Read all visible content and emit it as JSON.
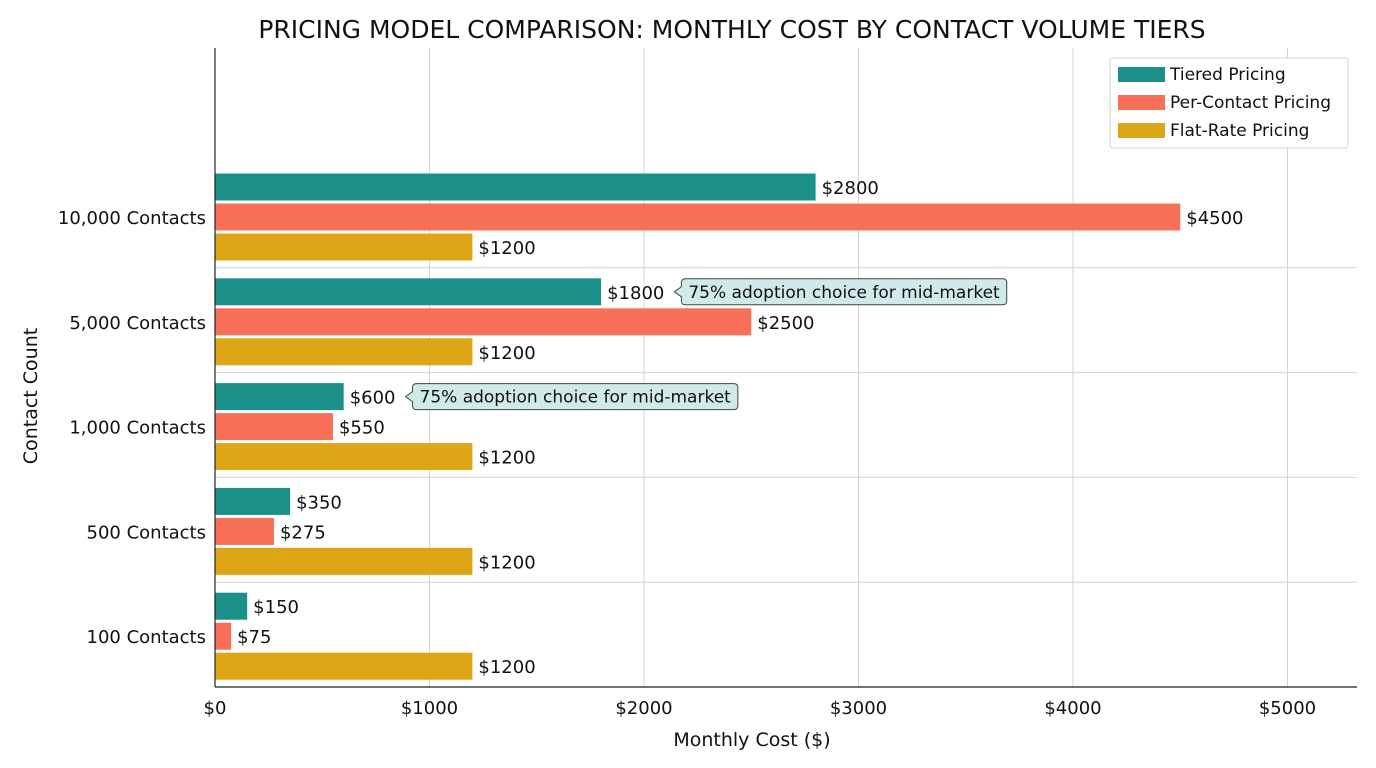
{
  "chart_data": {
    "type": "bar",
    "orientation": "horizontal",
    "title": "PRICING MODEL COMPARISON: MONTHLY COST BY CONTACT VOLUME TIERS",
    "xlabel": "Monthly Cost ($)",
    "ylabel": "Contact Count",
    "xlim": [
      0,
      5300
    ],
    "x_ticks": [
      0,
      1000,
      2000,
      3000,
      4000,
      5000
    ],
    "x_tick_labels": [
      "$0",
      "$1000",
      "$2000",
      "$3000",
      "$4000",
      "$5000"
    ],
    "categories": [
      "10,000 Contacts",
      "5,000 Contacts",
      "1,000 Contacts",
      "500 Contacts",
      "100 Contacts"
    ],
    "series": [
      {
        "name": "Tiered Pricing",
        "color": "#1a9089",
        "values": [
          2800,
          1800,
          600,
          350,
          150
        ],
        "labels": [
          "$2800",
          "$1800",
          "$600",
          "$350",
          "$150"
        ]
      },
      {
        "name": "Per-Contact Pricing",
        "color": "#f87058",
        "values": [
          4500,
          2500,
          550,
          275,
          75
        ],
        "labels": [
          "$4500",
          "$2500",
          "$550",
          "$275",
          "$75"
        ]
      },
      {
        "name": "Flat-Rate Pricing",
        "color": "#dca616",
        "values": [
          1200,
          1200,
          1200,
          1200,
          1200
        ],
        "labels": [
          "$1200",
          "$1200",
          "$1200",
          "$1200",
          "$1200"
        ]
      }
    ],
    "annotations": [
      {
        "text": "75% adoption choice for mid-market",
        "category": "5,000 Contacts",
        "series": "Tiered Pricing"
      },
      {
        "text": "75% adoption choice for mid-market",
        "category": "1,000 Contacts",
        "series": "Tiered Pricing"
      }
    ],
    "grid": true,
    "legend_position": "top-right"
  }
}
